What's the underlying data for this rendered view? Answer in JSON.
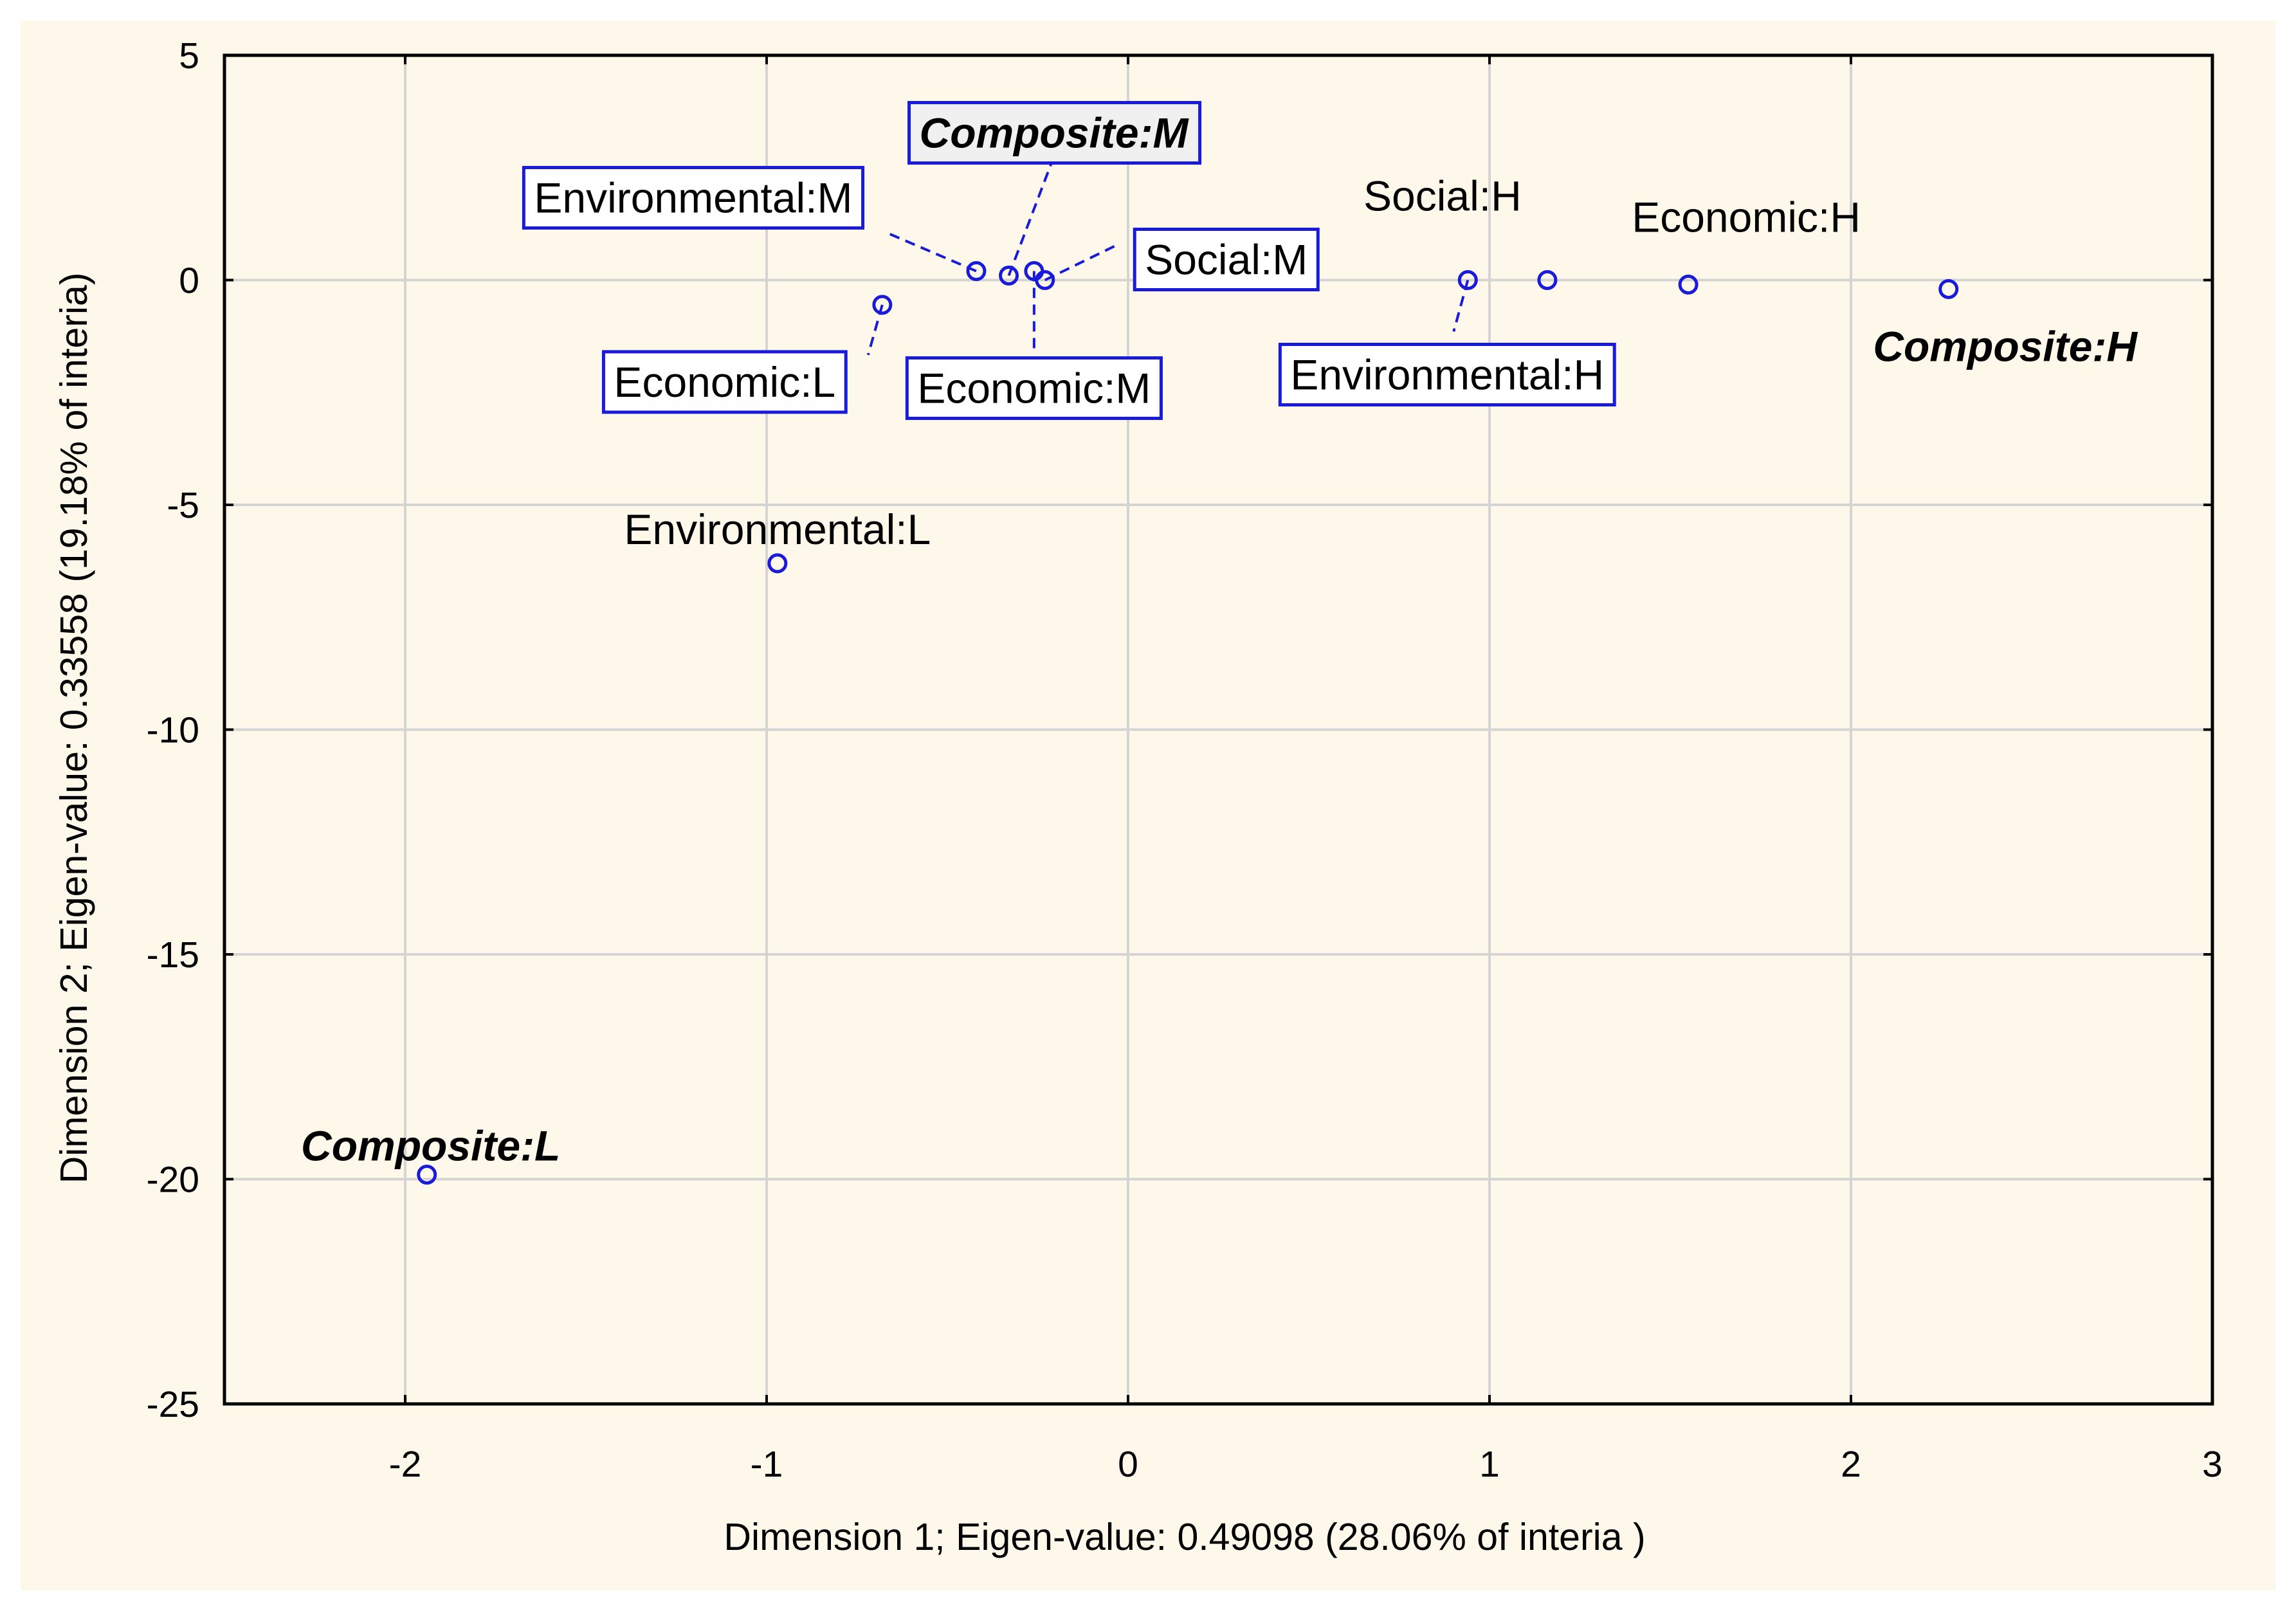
{
  "chart_data": {
    "type": "scatter",
    "title": "",
    "xlabel": "Dimension    1; Eigen-value: 0.49098 (28.06% of interia )",
    "ylabel": "Dimension 2; Eigen-value:  0.33558 (19.18% of interia)",
    "xlim": [
      -2.5,
      3
    ],
    "ylim": [
      -25,
      5
    ],
    "x_ticks": [
      -2,
      -1,
      0,
      1,
      2,
      3
    ],
    "y_ticks": [
      5,
      0,
      -5,
      -10,
      -15,
      -20,
      -25
    ],
    "x_tick_labels": [
      "-2",
      "-1",
      "0",
      "1",
      "2",
      "3"
    ],
    "y_tick_labels": [
      "5",
      "0",
      "-5",
      "-10",
      "-15",
      "-20",
      "-25"
    ],
    "grid": true,
    "marker_color": "#1a1adb",
    "points": [
      {
        "label": "Composite:L",
        "x": -1.94,
        "y": -19.9,
        "composite": true,
        "boxed": false
      },
      {
        "label": "Environmental:L",
        "x": -0.97,
        "y": -6.3,
        "composite": false,
        "boxed": false
      },
      {
        "label": "Economic:L",
        "x": -0.68,
        "y": -0.55,
        "composite": false,
        "boxed": true
      },
      {
        "label": "Environmental:M",
        "x": -0.42,
        "y": 0.2,
        "composite": false,
        "boxed": true
      },
      {
        "label": "Composite:M",
        "x": -0.33,
        "y": 0.1,
        "composite": true,
        "boxed": true
      },
      {
        "label": "Economic:M",
        "x": -0.26,
        "y": 0.2,
        "composite": false,
        "boxed": true
      },
      {
        "label": "Social:M",
        "x": -0.23,
        "y": 0.0,
        "composite": false,
        "boxed": true
      },
      {
        "label": "Environmental:H",
        "x": 0.94,
        "y": 0.0,
        "composite": false,
        "boxed": true
      },
      {
        "label": "Social:H",
        "x": 1.16,
        "y": 0.0,
        "composite": false,
        "boxed": false
      },
      {
        "label": "Economic:H",
        "x": 1.55,
        "y": -0.1,
        "composite": false,
        "boxed": false
      },
      {
        "label": "Composite:H",
        "x": 2.27,
        "y": -0.2,
        "composite": true,
        "boxed": false
      }
    ]
  }
}
